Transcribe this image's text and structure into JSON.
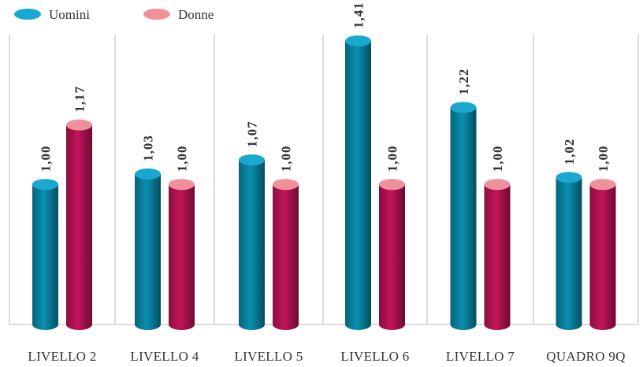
{
  "chart_data": {
    "type": "bar",
    "title": "",
    "xlabel": "",
    "ylabel": "",
    "categories": [
      "LIVELLO 2",
      "LIVELLO 4",
      "LIVELLO 5",
      "LIVELLO 6",
      "LIVELLO 7",
      "QUADRO 9Q"
    ],
    "series": [
      {
        "name": "Uomini",
        "values": [
          1.0,
          1.03,
          1.07,
          1.41,
          1.22,
          1.02
        ],
        "labels": [
          "1,00",
          "1,03",
          "1,07",
          "1,41",
          "1,22",
          "1,02"
        ],
        "color": "#0a8fb0",
        "top_color": "#1aa8cf"
      },
      {
        "name": "Donne",
        "values": [
          1.17,
          1.0,
          1.0,
          1.0,
          1.0,
          1.0
        ],
        "labels": [
          "1,17",
          "1,00",
          "1,00",
          "1,00",
          "1,00",
          "1,00"
        ],
        "color": "#c4145a",
        "top_color": "#f0909a"
      }
    ],
    "ylim": [
      0.6,
      1.5
    ],
    "grid": false,
    "legend": "top-left",
    "bar_style": "3d-cylinder"
  }
}
